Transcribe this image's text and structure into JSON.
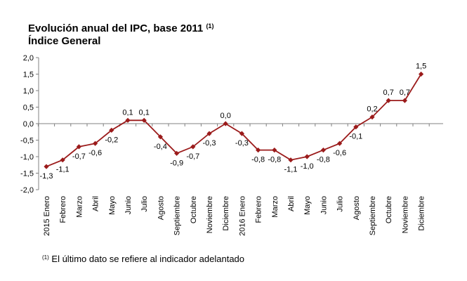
{
  "header": {
    "title_line1": "Evolución anual del IPC, base 2011",
    "title_mark": "(1)",
    "title_line2": "Índice General"
  },
  "footnote": {
    "mark": "(1)",
    "text": "El último dato se refiere al indicador adelantado"
  },
  "colors": {
    "series": "#9b1b1b",
    "axis": "#808080",
    "grid": "#d9d9d9"
  },
  "chart_data": {
    "type": "line",
    "title": "Evolución anual del IPC, base 2011",
    "subtitle": "Índice General",
    "categories": [
      "2015 Enero",
      "Febrero",
      "Marzo",
      "Abril",
      "Mayo",
      "Junio",
      "Julio",
      "Agosto",
      "Septiembre",
      "Octubre",
      "Noviembre",
      "Diciembre",
      "2016 Enero",
      "Febrero",
      "Marzo",
      "Abril",
      "Mayo",
      "Junio",
      "Julio",
      "Agosto",
      "Septiembre",
      "Octubre",
      "Noviembre",
      "Diciembre"
    ],
    "values": [
      -1.3,
      -1.1,
      -0.7,
      -0.6,
      -0.2,
      0.1,
      0.1,
      -0.4,
      -0.9,
      -0.7,
      -0.3,
      0.0,
      -0.3,
      -0.8,
      -0.8,
      -1.1,
      -1.0,
      -0.8,
      -0.6,
      -0.1,
      0.2,
      0.7,
      0.7,
      1.5
    ],
    "data_labels": [
      "-1,3",
      "-1,1",
      "-0,7",
      "-0,6",
      "-0,2",
      "0,1",
      "0,1",
      "-0,4",
      "-0,9",
      "-0,7",
      "-0,3",
      "0,0",
      "-0,3",
      "-0,8",
      "-0,8",
      "-1,1",
      "-1,0",
      "-0,8",
      "-0,6",
      "-0,1",
      "0,2",
      "0,7",
      "0,7",
      "1,5"
    ],
    "label_position": [
      "below",
      "below",
      "below",
      "below",
      "below",
      "above",
      "above",
      "below",
      "below",
      "below",
      "below",
      "above",
      "below",
      "below",
      "below",
      "below",
      "below",
      "below",
      "below",
      "below",
      "above",
      "above",
      "above",
      "above"
    ],
    "ylim": [
      -2.0,
      2.0
    ],
    "yticks": [
      2.0,
      1.5,
      1.0,
      0.5,
      0.0,
      -0.5,
      -1.0,
      -1.5,
      -2.0
    ],
    "ytick_labels": [
      "2,0",
      "1,5",
      "1,0",
      "0,5",
      "0,0",
      "-0,5",
      "-1,0",
      "-1,5",
      "-2,0"
    ],
    "grid": false,
    "legend": "none"
  }
}
